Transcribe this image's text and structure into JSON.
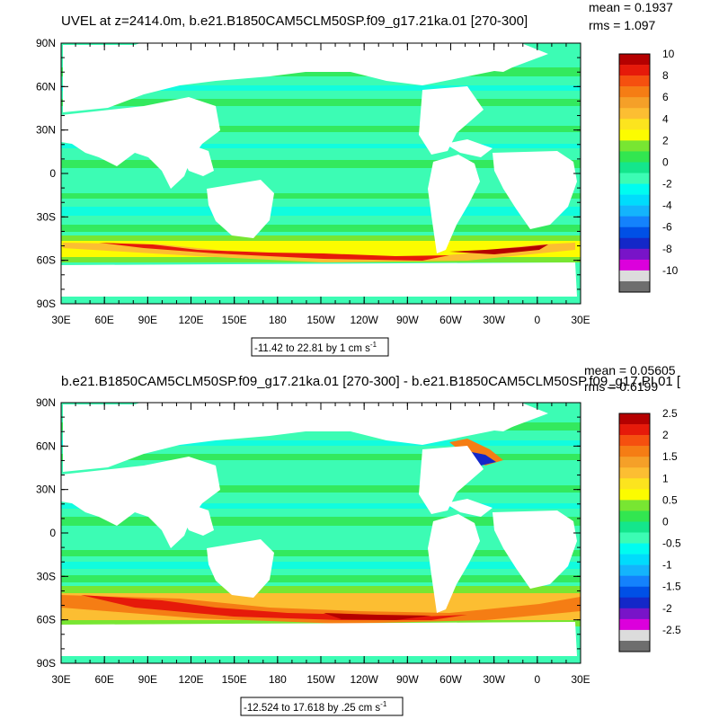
{
  "chart_data": [
    {
      "type": "heatmap",
      "title": "UVEL at z=2414.0m, b.e21.B1850CAM5CLM50SP.f09_g17.21ka.01 [270-300]",
      "stats": {
        "mean": "mean = 0.1937",
        "rms": "rms = 1.097"
      },
      "lon_ticks": [
        "30E",
        "60E",
        "90E",
        "120E",
        "150E",
        "180",
        "150W",
        "120W",
        "90W",
        "60W",
        "30W",
        "0",
        "30E"
      ],
      "lat_ticks": [
        "90N",
        "60N",
        "30N",
        "0",
        "30S",
        "60S",
        "90S"
      ],
      "colorbar": {
        "labels": [
          "10",
          "8",
          "6",
          "4",
          "2",
          "0",
          "-2",
          "-4",
          "-6",
          "-8",
          "-10"
        ],
        "range": [
          -10,
          10
        ],
        "colors": [
          "#b50000",
          "#e61a0a",
          "#f5500f",
          "#f57d14",
          "#f5a028",
          "#fcbe32",
          "#fce41e",
          "#fcfc00",
          "#78e632",
          "#32e650",
          "#14e68c",
          "#3cfcb4",
          "#00fcf0",
          "#00dcfc",
          "#14b4fc",
          "#1482fc",
          "#0050e6",
          "#1428c8",
          "#7814c8",
          "#dc00dc",
          "#dcdcdc",
          "#6e6e6e"
        ]
      },
      "range_label": "-11.42 to 22.81 by 1 cm s",
      "range_unit_exp": "-1"
    },
    {
      "type": "heatmap",
      "title": "b.e21.B1850CAM5CLM50SP.f09_g17.21ka.01 [270-300] - b.e21.B1850CAM5CLM50SP.f09_g17.PI.01 [",
      "stats": {
        "mean": "mean = 0.05605",
        "rms": "rms = 0.6199"
      },
      "lon_ticks": [
        "30E",
        "60E",
        "90E",
        "120E",
        "150E",
        "180",
        "150W",
        "120W",
        "90W",
        "60W",
        "30W",
        "0",
        "30E"
      ],
      "lat_ticks": [
        "90N",
        "60N",
        "30N",
        "0",
        "30S",
        "60S",
        "90S"
      ],
      "colorbar": {
        "labels": [
          "2.5",
          "2",
          "1.5",
          "1",
          "0.5",
          "0",
          "-0.5",
          "-1",
          "-1.5",
          "-2",
          "-2.5"
        ],
        "range": [
          -2.5,
          2.5
        ],
        "colors": [
          "#b50000",
          "#e61a0a",
          "#f5500f",
          "#f57d14",
          "#f5a028",
          "#fcbe32",
          "#fce41e",
          "#fcfc00",
          "#78e632",
          "#32e650",
          "#14e68c",
          "#3cfcb4",
          "#00fcf0",
          "#00dcfc",
          "#14b4fc",
          "#1482fc",
          "#0050e6",
          "#1428c8",
          "#7814c8",
          "#dc00dc",
          "#dcdcdc",
          "#6e6e6e"
        ]
      },
      "range_label": "-12.524 to 17.618 by .25 cm s",
      "range_unit_exp": "-1"
    }
  ]
}
